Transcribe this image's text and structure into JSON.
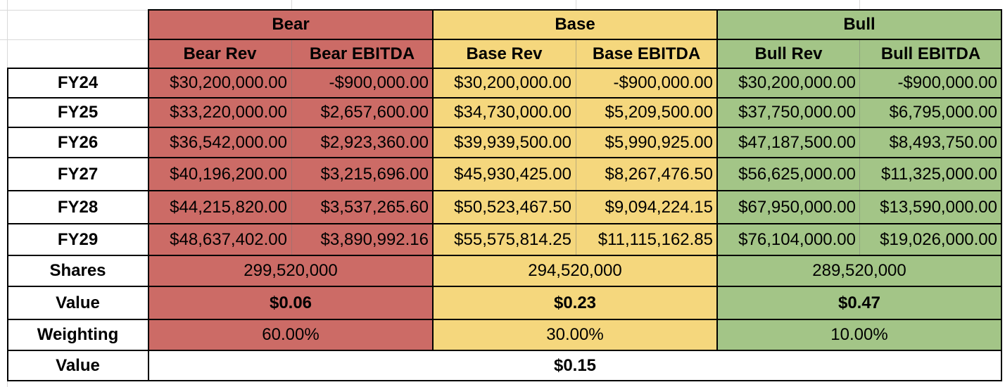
{
  "scenarios": [
    {
      "name": "Bear",
      "col_rev": "Bear Rev",
      "col_ebitda": "Bear EBITDA"
    },
    {
      "name": "Base",
      "col_rev": "Base Rev",
      "col_ebitda": "Base EBITDA"
    },
    {
      "name": "Bull",
      "col_rev": "Bull Rev",
      "col_ebitda": "Bull EBITDA"
    }
  ],
  "years": [
    {
      "label": "FY24",
      "values": [
        "$30,200,000.00",
        "-$900,000.00",
        "$30,200,000.00",
        "-$900,000.00",
        "$30,200,000.00",
        "-$900,000.00"
      ]
    },
    {
      "label": "FY25",
      "values": [
        "$33,220,000.00",
        "$2,657,600.00",
        "$34,730,000.00",
        "$5,209,500.00",
        "$37,750,000.00",
        "$6,795,000.00"
      ]
    },
    {
      "label": "FY26",
      "values": [
        "$36,542,000.00",
        "$2,923,360.00",
        "$39,939,500.00",
        "$5,990,925.00",
        "$47,187,500.00",
        "$8,493,750.00"
      ]
    },
    {
      "label": "FY27",
      "values": [
        "$40,196,200.00",
        "$3,215,696.00",
        "$45,930,425.00",
        "$8,267,476.50",
        "$56,625,000.00",
        "$11,325,000.00"
      ]
    },
    {
      "label": "FY28",
      "values": [
        "$44,215,820.00",
        "$3,537,265.60",
        "$50,523,467.50",
        "$9,094,224.15",
        "$67,950,000.00",
        "$13,590,000.00"
      ]
    },
    {
      "label": "FY29",
      "values": [
        "$48,637,402.00",
        "$3,890,992.16",
        "$55,575,814.25",
        "$11,115,162.85",
        "$76,104,000.00",
        "$19,026,000.00"
      ]
    }
  ],
  "shares": {
    "label": "Shares",
    "values": [
      "299,520,000",
      "294,520,000",
      "289,520,000"
    ]
  },
  "value": {
    "label": "Value",
    "values": [
      "$0.06",
      "$0.23",
      "$0.47"
    ]
  },
  "weighting": {
    "label": "Weighting",
    "values": [
      "60.00%",
      "30.00%",
      "10.00%"
    ]
  },
  "final_value": {
    "label": "Value",
    "value": "$0.15"
  },
  "colors": {
    "bear": "#cc6b66",
    "base": "#f5d77d",
    "bull": "#a3c587"
  }
}
